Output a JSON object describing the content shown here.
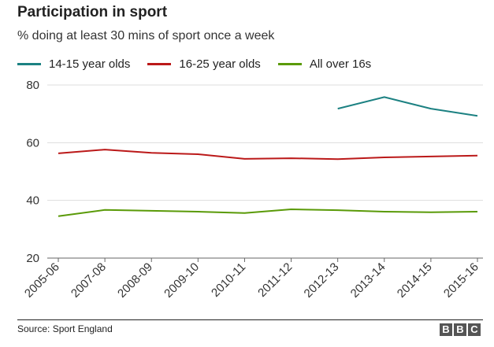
{
  "chart_data": {
    "type": "line",
    "title": "Participation in sport",
    "subtitle": "% doing at least 30 mins of sport once a week",
    "categories": [
      "2005-06",
      "2007-08",
      "2008-09",
      "2009-10",
      "2010-11",
      "2011-12",
      "2012-13",
      "2013-14",
      "2014-15",
      "2015-16"
    ],
    "series": [
      {
        "name": "14-15 year olds",
        "color": "#1c8182",
        "values": [
          null,
          null,
          null,
          null,
          null,
          null,
          71.8,
          75.8,
          71.8,
          69.3
        ]
      },
      {
        "name": "16-25 year olds",
        "color": "#bb1919",
        "values": [
          56.3,
          57.6,
          56.5,
          56.0,
          54.4,
          54.6,
          54.3,
          54.9,
          55.2,
          55.5
        ]
      },
      {
        "name": "All over 16s",
        "color": "#5a9a08",
        "values": [
          34.5,
          36.7,
          36.4,
          36.1,
          35.6,
          36.9,
          36.6,
          36.1,
          35.9,
          36.1
        ]
      }
    ],
    "yticks": [
      20,
      40,
      60,
      80
    ],
    "ylim": [
      20,
      80
    ],
    "grid": true,
    "legend_position": "top-left"
  },
  "footer": {
    "source": "Source: Sport England",
    "logo_letters": [
      "B",
      "B",
      "C"
    ]
  }
}
